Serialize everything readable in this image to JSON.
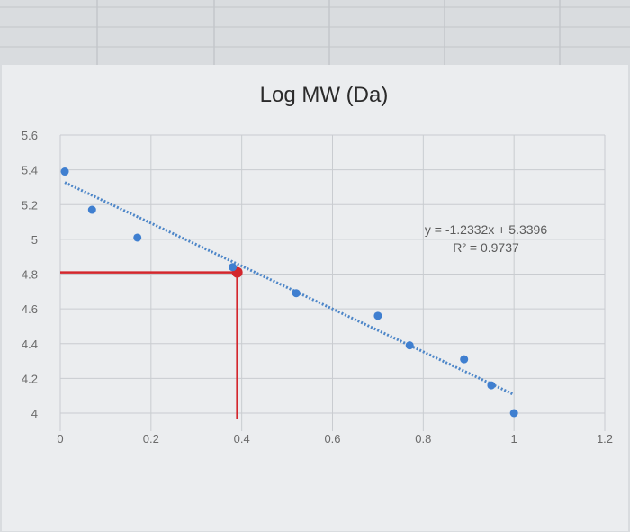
{
  "chart_data": {
    "type": "scatter",
    "title": "Log MW (Da)",
    "xlim": [
      0,
      1.2
    ],
    "ylim": [
      4,
      5.6
    ],
    "x_ticks": [
      "0",
      "0.2",
      "0.4",
      "0.6",
      "0.8",
      "1",
      "1.2"
    ],
    "y_ticks": [
      "4",
      "4.2",
      "4.4",
      "4.6",
      "4.8",
      "5",
      "5.2",
      "5.4",
      "5.6"
    ],
    "x_tick_values": [
      0,
      0.2,
      0.4,
      0.6,
      0.8,
      1.0,
      1.2
    ],
    "y_tick_values": [
      4,
      4.2,
      4.4,
      4.6,
      4.8,
      5.0,
      5.2,
      5.4,
      5.6
    ],
    "grid": true,
    "points": [
      {
        "x": 0.01,
        "y": 5.39
      },
      {
        "x": 0.07,
        "y": 5.17
      },
      {
        "x": 0.17,
        "y": 5.01
      },
      {
        "x": 0.38,
        "y": 4.84
      },
      {
        "x": 0.52,
        "y": 4.69
      },
      {
        "x": 0.7,
        "y": 4.56
      },
      {
        "x": 0.77,
        "y": 4.39
      },
      {
        "x": 0.89,
        "y": 4.31
      },
      {
        "x": 0.95,
        "y": 4.16
      },
      {
        "x": 1.0,
        "y": 4.0
      }
    ],
    "trendline": {
      "slope": -1.2332,
      "intercept": 5.3396,
      "x_range": [
        0.01,
        1.0
      ]
    },
    "equation": "y = -1.2332x + 5.3396",
    "r_squared": "R² = 0.9737",
    "highlight": {
      "x": 0.39,
      "y": 4.81
    },
    "colors": {
      "points": "#3f7fd0",
      "trendline": "#4d86c8",
      "highlight": "#d3262c"
    }
  }
}
